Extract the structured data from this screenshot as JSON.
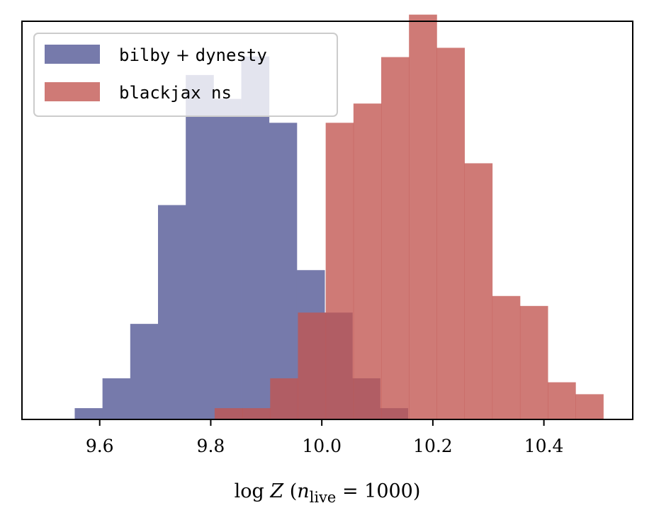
{
  "chart_data": {
    "type": "bar",
    "subtype": "histogram",
    "title": "",
    "xlabel": "log Z (n_live = 1000)",
    "xlabel_parts": {
      "prefix": "log ",
      "symbol": "Z",
      "open": " (",
      "var": "n",
      "sub": "live",
      "rest": " = 1000)"
    },
    "ylabel": "",
    "xlim": [
      9.46,
      10.56
    ],
    "ylim": [
      0,
      0.6
    ],
    "xticks": [
      9.6,
      9.8,
      10.0,
      10.2,
      10.4
    ],
    "xtick_labels": [
      "9.6",
      "9.8",
      "10.0",
      "10.2",
      "10.4"
    ],
    "yticks_visible": false,
    "grid": false,
    "legend": {
      "position": "top-left"
    },
    "series": [
      {
        "name": "bilby + dynesty",
        "legend_parts": [
          "bilby",
          " + ",
          "dynesty"
        ],
        "color": "#767aab",
        "opacity": 1.0,
        "bin_edges": [
          9.555,
          9.605,
          9.655,
          9.705,
          9.755,
          9.805,
          9.855,
          9.905,
          9.955,
          10.005,
          10.055,
          10.105,
          10.155,
          10.205
        ],
        "values": [
          0.017,
          0.062,
          0.144,
          0.323,
          0.519,
          0.483,
          0.547,
          0.447,
          0.225,
          0.161,
          0.062,
          0.017,
          0.0
        ]
      },
      {
        "name": "blackjax ns",
        "legend_parts": [
          "blackjax",
          " ",
          "ns"
        ],
        "color": "#c25450",
        "opacity": 0.78,
        "bin_edges": [
          9.807,
          9.857,
          9.907,
          9.957,
          10.007,
          10.057,
          10.107,
          10.157,
          10.207,
          10.257,
          10.307,
          10.357,
          10.407,
          10.457,
          10.507
        ],
        "values": [
          0.017,
          0.017,
          0.062,
          0.161,
          0.447,
          0.476,
          0.546,
          0.61,
          0.56,
          0.386,
          0.186,
          0.171,
          0.056,
          0.038
        ]
      }
    ]
  }
}
